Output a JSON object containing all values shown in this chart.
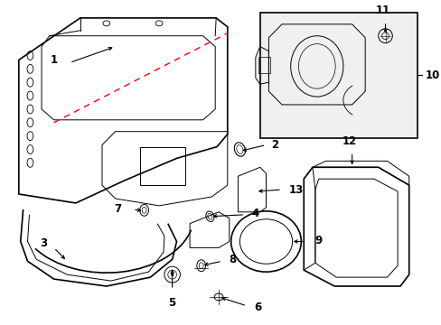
{
  "background_color": "#ffffff",
  "line_color": "#000000",
  "red_color": "#ff0000",
  "box_bg": "#f0f0f0",
  "figsize": [
    4.89,
    3.6
  ],
  "dpi": 100
}
